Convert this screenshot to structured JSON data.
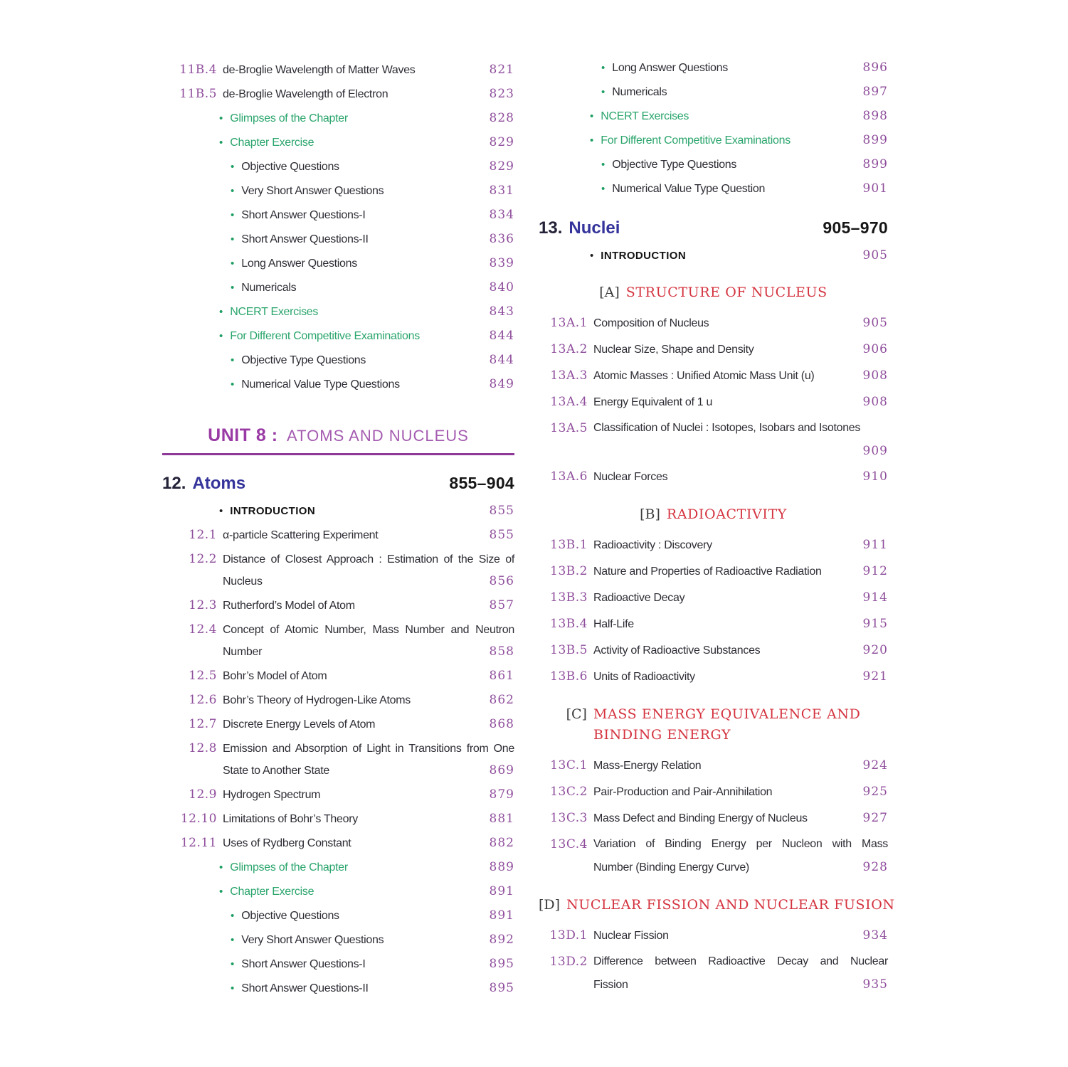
{
  "colors": {
    "number_purple": "#8F4E9C",
    "green_label": "#2AA56C",
    "bullet_green": "#1E9E63",
    "body_text": "#2E2D35",
    "chapter_number": "#232238",
    "chapter_title_blue": "#35349B",
    "unit_purple": "#9A3AA5",
    "unit_subtitle_purple": "#A45BB0",
    "rule_purple": "#8E3898",
    "part_heading_red": "#D4333F",
    "part_bracket": "#3A3A3A"
  },
  "left_column": {
    "top_items": [
      {
        "type": "section",
        "num": "11B.4",
        "lines": [
          {
            "text": "de-Broglie Wavelength of Matter Waves",
            "page": "821"
          }
        ]
      },
      {
        "type": "section",
        "num": "11B.5",
        "lines": [
          {
            "text": "de-Broglie Wavelength of Electron",
            "page": "823"
          }
        ]
      },
      {
        "type": "bullet1",
        "text": "Glimpses of the Chapter",
        "page": "828"
      },
      {
        "type": "bullet1",
        "text": "Chapter Exercise",
        "page": "829"
      },
      {
        "type": "bullet2",
        "text": "Objective Questions",
        "page": "829"
      },
      {
        "type": "bullet2",
        "text": "Very Short Answer Questions",
        "page": "831"
      },
      {
        "type": "bullet2",
        "text": "Short Answer Questions-I",
        "page": "834"
      },
      {
        "type": "bullet2",
        "text": "Short Answer Questions-II",
        "page": "836"
      },
      {
        "type": "bullet2",
        "text": "Long Answer Questions",
        "page": "839"
      },
      {
        "type": "bullet2",
        "text": "Numericals",
        "page": "840"
      },
      {
        "type": "bullet1",
        "text": "NCERT Exercises",
        "page": "843"
      },
      {
        "type": "bullet1",
        "text": "For Different Competitive Examinations",
        "page": "844"
      },
      {
        "type": "bullet2",
        "text": "Objective Type Questions",
        "page": "844"
      },
      {
        "type": "bullet2",
        "text": "Numerical Value Type Questions",
        "page": "849"
      }
    ],
    "unit_heading": {
      "label": "UNIT 8 :",
      "title": "ATOMS AND NUCLEUS"
    },
    "chapter": {
      "num": "12.",
      "title": "Atoms",
      "pages": "855–904"
    },
    "intro": {
      "type": "intro",
      "text": "INTRODUCTION",
      "page": "855"
    },
    "items": [
      {
        "type": "section",
        "num": "12.1",
        "lines": [
          {
            "text": "α-particle Scattering Experiment",
            "page": "855"
          }
        ]
      },
      {
        "type": "section",
        "num": "12.2",
        "lines": [
          {
            "text": "Distance of Closest Approach : Estimation of the Size of",
            "justify": true
          },
          {
            "text": "Nucleus",
            "page": "856"
          }
        ]
      },
      {
        "type": "section",
        "num": "12.3",
        "lines": [
          {
            "text": "Rutherford’s Model of Atom",
            "page": "857"
          }
        ]
      },
      {
        "type": "section",
        "num": "12.4",
        "lines": [
          {
            "text": "Concept of Atomic Number, Mass Number and Neutron",
            "justify": true
          },
          {
            "text": "Number",
            "page": "858"
          }
        ]
      },
      {
        "type": "section",
        "num": "12.5",
        "lines": [
          {
            "text": "Bohr’s Model of Atom",
            "page": "861"
          }
        ]
      },
      {
        "type": "section",
        "num": "12.6",
        "lines": [
          {
            "text": "Bohr’s Theory of Hydrogen-Like Atoms",
            "page": "862"
          }
        ]
      },
      {
        "type": "section",
        "num": "12.7",
        "lines": [
          {
            "text": "Discrete Energy Levels of Atom",
            "page": "868"
          }
        ]
      },
      {
        "type": "section",
        "num": "12.8",
        "lines": [
          {
            "text": "Emission and Absorption of Light in Transitions from One",
            "justify": true
          },
          {
            "text": "State to Another State",
            "page": "869"
          }
        ]
      },
      {
        "type": "section",
        "num": "12.9",
        "lines": [
          {
            "text": "Hydrogen Spectrum",
            "page": "879"
          }
        ]
      },
      {
        "type": "section",
        "num": "12.10",
        "lines": [
          {
            "text": "Limitations of Bohr’s Theory",
            "page": "881"
          }
        ]
      },
      {
        "type": "section",
        "num": "12.11",
        "lines": [
          {
            "text": "Uses of Rydberg Constant",
            "page": "882"
          }
        ]
      },
      {
        "type": "bullet1",
        "text": "Glimpses of the Chapter",
        "page": "889"
      },
      {
        "type": "bullet1",
        "text": "Chapter Exercise",
        "page": "891"
      },
      {
        "type": "bullet2",
        "text": "Objective Questions",
        "page": "891"
      },
      {
        "type": "bullet2",
        "text": "Very Short Answer Questions",
        "page": "892"
      },
      {
        "type": "bullet2",
        "text": "Short Answer Questions-I",
        "page": "895"
      },
      {
        "type": "bullet2",
        "text": "Short Answer Questions-II",
        "page": "895"
      }
    ]
  },
  "right_column": {
    "top_items": [
      {
        "type": "bullet2",
        "text": "Long Answer Questions",
        "page": "896"
      },
      {
        "type": "bullet2",
        "text": "Numericals",
        "page": "897"
      },
      {
        "type": "bullet1",
        "text": "NCERT Exercises",
        "page": "898"
      },
      {
        "type": "bullet1",
        "text": "For Different Competitive Examinations",
        "page": "899"
      },
      {
        "type": "bullet2",
        "text": "Objective Type Questions",
        "page": "899"
      },
      {
        "type": "bullet2",
        "text": "Numerical Value Type Question",
        "page": "901"
      }
    ],
    "chapter": {
      "num": "13.",
      "title": "Nuclei",
      "pages": "905–970"
    },
    "intro": {
      "type": "intro",
      "text": "INTRODUCTION",
      "page": "905"
    },
    "groups": [
      {
        "part": {
          "bracket": "[A]",
          "lines": [
            "STRUCTURE OF NUCLEUS"
          ]
        },
        "items": [
          {
            "type": "section",
            "num": "13A.1",
            "lines": [
              {
                "text": "Composition of Nucleus",
                "page": "905"
              }
            ]
          },
          {
            "type": "section",
            "num": "13A.2",
            "lines": [
              {
                "text": "Nuclear Size, Shape and Density",
                "page": "906"
              }
            ]
          },
          {
            "type": "section",
            "num": "13A.3",
            "lines": [
              {
                "text": "Atomic Masses : Unified Atomic Mass Unit (u)",
                "page": "908"
              }
            ]
          },
          {
            "type": "section",
            "num": "13A.4",
            "lines": [
              {
                "text": "Energy Equivalent of 1 u",
                "page": "908"
              }
            ]
          },
          {
            "type": "section",
            "num": "13A.5",
            "lines": [
              {
                "text": "Classification of Nuclei : Isotopes, Isobars and Isotones"
              },
              {
                "text": "",
                "page": "909"
              }
            ]
          },
          {
            "type": "section",
            "num": "13A.6",
            "lines": [
              {
                "text": "Nuclear Forces",
                "page": "910"
              }
            ]
          }
        ]
      },
      {
        "part": {
          "bracket": "[B]",
          "lines": [
            "RADIOACTIVITY"
          ]
        },
        "items": [
          {
            "type": "section",
            "num": "13B.1",
            "lines": [
              {
                "text": "Radioactivity : Discovery",
                "page": "911"
              }
            ]
          },
          {
            "type": "section",
            "num": "13B.2",
            "lines": [
              {
                "text": "Nature and Properties of Radioactive Radiation",
                "page": "912"
              }
            ]
          },
          {
            "type": "section",
            "num": "13B.3",
            "lines": [
              {
                "text": "Radioactive Decay",
                "page": "914"
              }
            ]
          },
          {
            "type": "section",
            "num": "13B.4",
            "lines": [
              {
                "text": "Half-Life",
                "page": "915"
              }
            ]
          },
          {
            "type": "section",
            "num": "13B.5",
            "lines": [
              {
                "text": "Activity of Radioactive Substances",
                "page": "920"
              }
            ]
          },
          {
            "type": "section",
            "num": "13B.6",
            "lines": [
              {
                "text": "Units of Radioactivity",
                "page": "921"
              }
            ]
          }
        ]
      },
      {
        "part": {
          "bracket": "[C]",
          "lines": [
            "MASS ENERGY EQUIVALENCE AND",
            "BINDING ENERGY"
          ]
        },
        "items": [
          {
            "type": "section",
            "num": "13C.1",
            "lines": [
              {
                "text": "Mass-Energy Relation",
                "page": "924"
              }
            ]
          },
          {
            "type": "section",
            "num": "13C.2",
            "lines": [
              {
                "text": "Pair-Production and Pair-Annihilation",
                "page": "925"
              }
            ]
          },
          {
            "type": "section",
            "num": "13C.3",
            "lines": [
              {
                "text": "Mass Defect and Binding Energy of Nucleus",
                "page": "927"
              }
            ]
          },
          {
            "type": "section",
            "num": "13C.4",
            "lines": [
              {
                "text": "Variation of Binding Energy per Nucleon with Mass",
                "justify": true
              },
              {
                "text": "Number (Binding Energy Curve)",
                "page": "928"
              }
            ]
          }
        ]
      },
      {
        "part": {
          "bracket": "[D]",
          "lines": [
            "NUCLEAR FISSION AND NUCLEAR FUSION"
          ]
        },
        "items": [
          {
            "type": "section",
            "num": "13D.1",
            "lines": [
              {
                "text": "Nuclear Fission",
                "page": "934"
              }
            ]
          },
          {
            "type": "section",
            "num": "13D.2",
            "lines": [
              {
                "text": "Difference between Radioactive Decay and Nuclear",
                "justify": true
              },
              {
                "text": "Fission",
                "page": "935"
              }
            ]
          }
        ]
      }
    ]
  }
}
